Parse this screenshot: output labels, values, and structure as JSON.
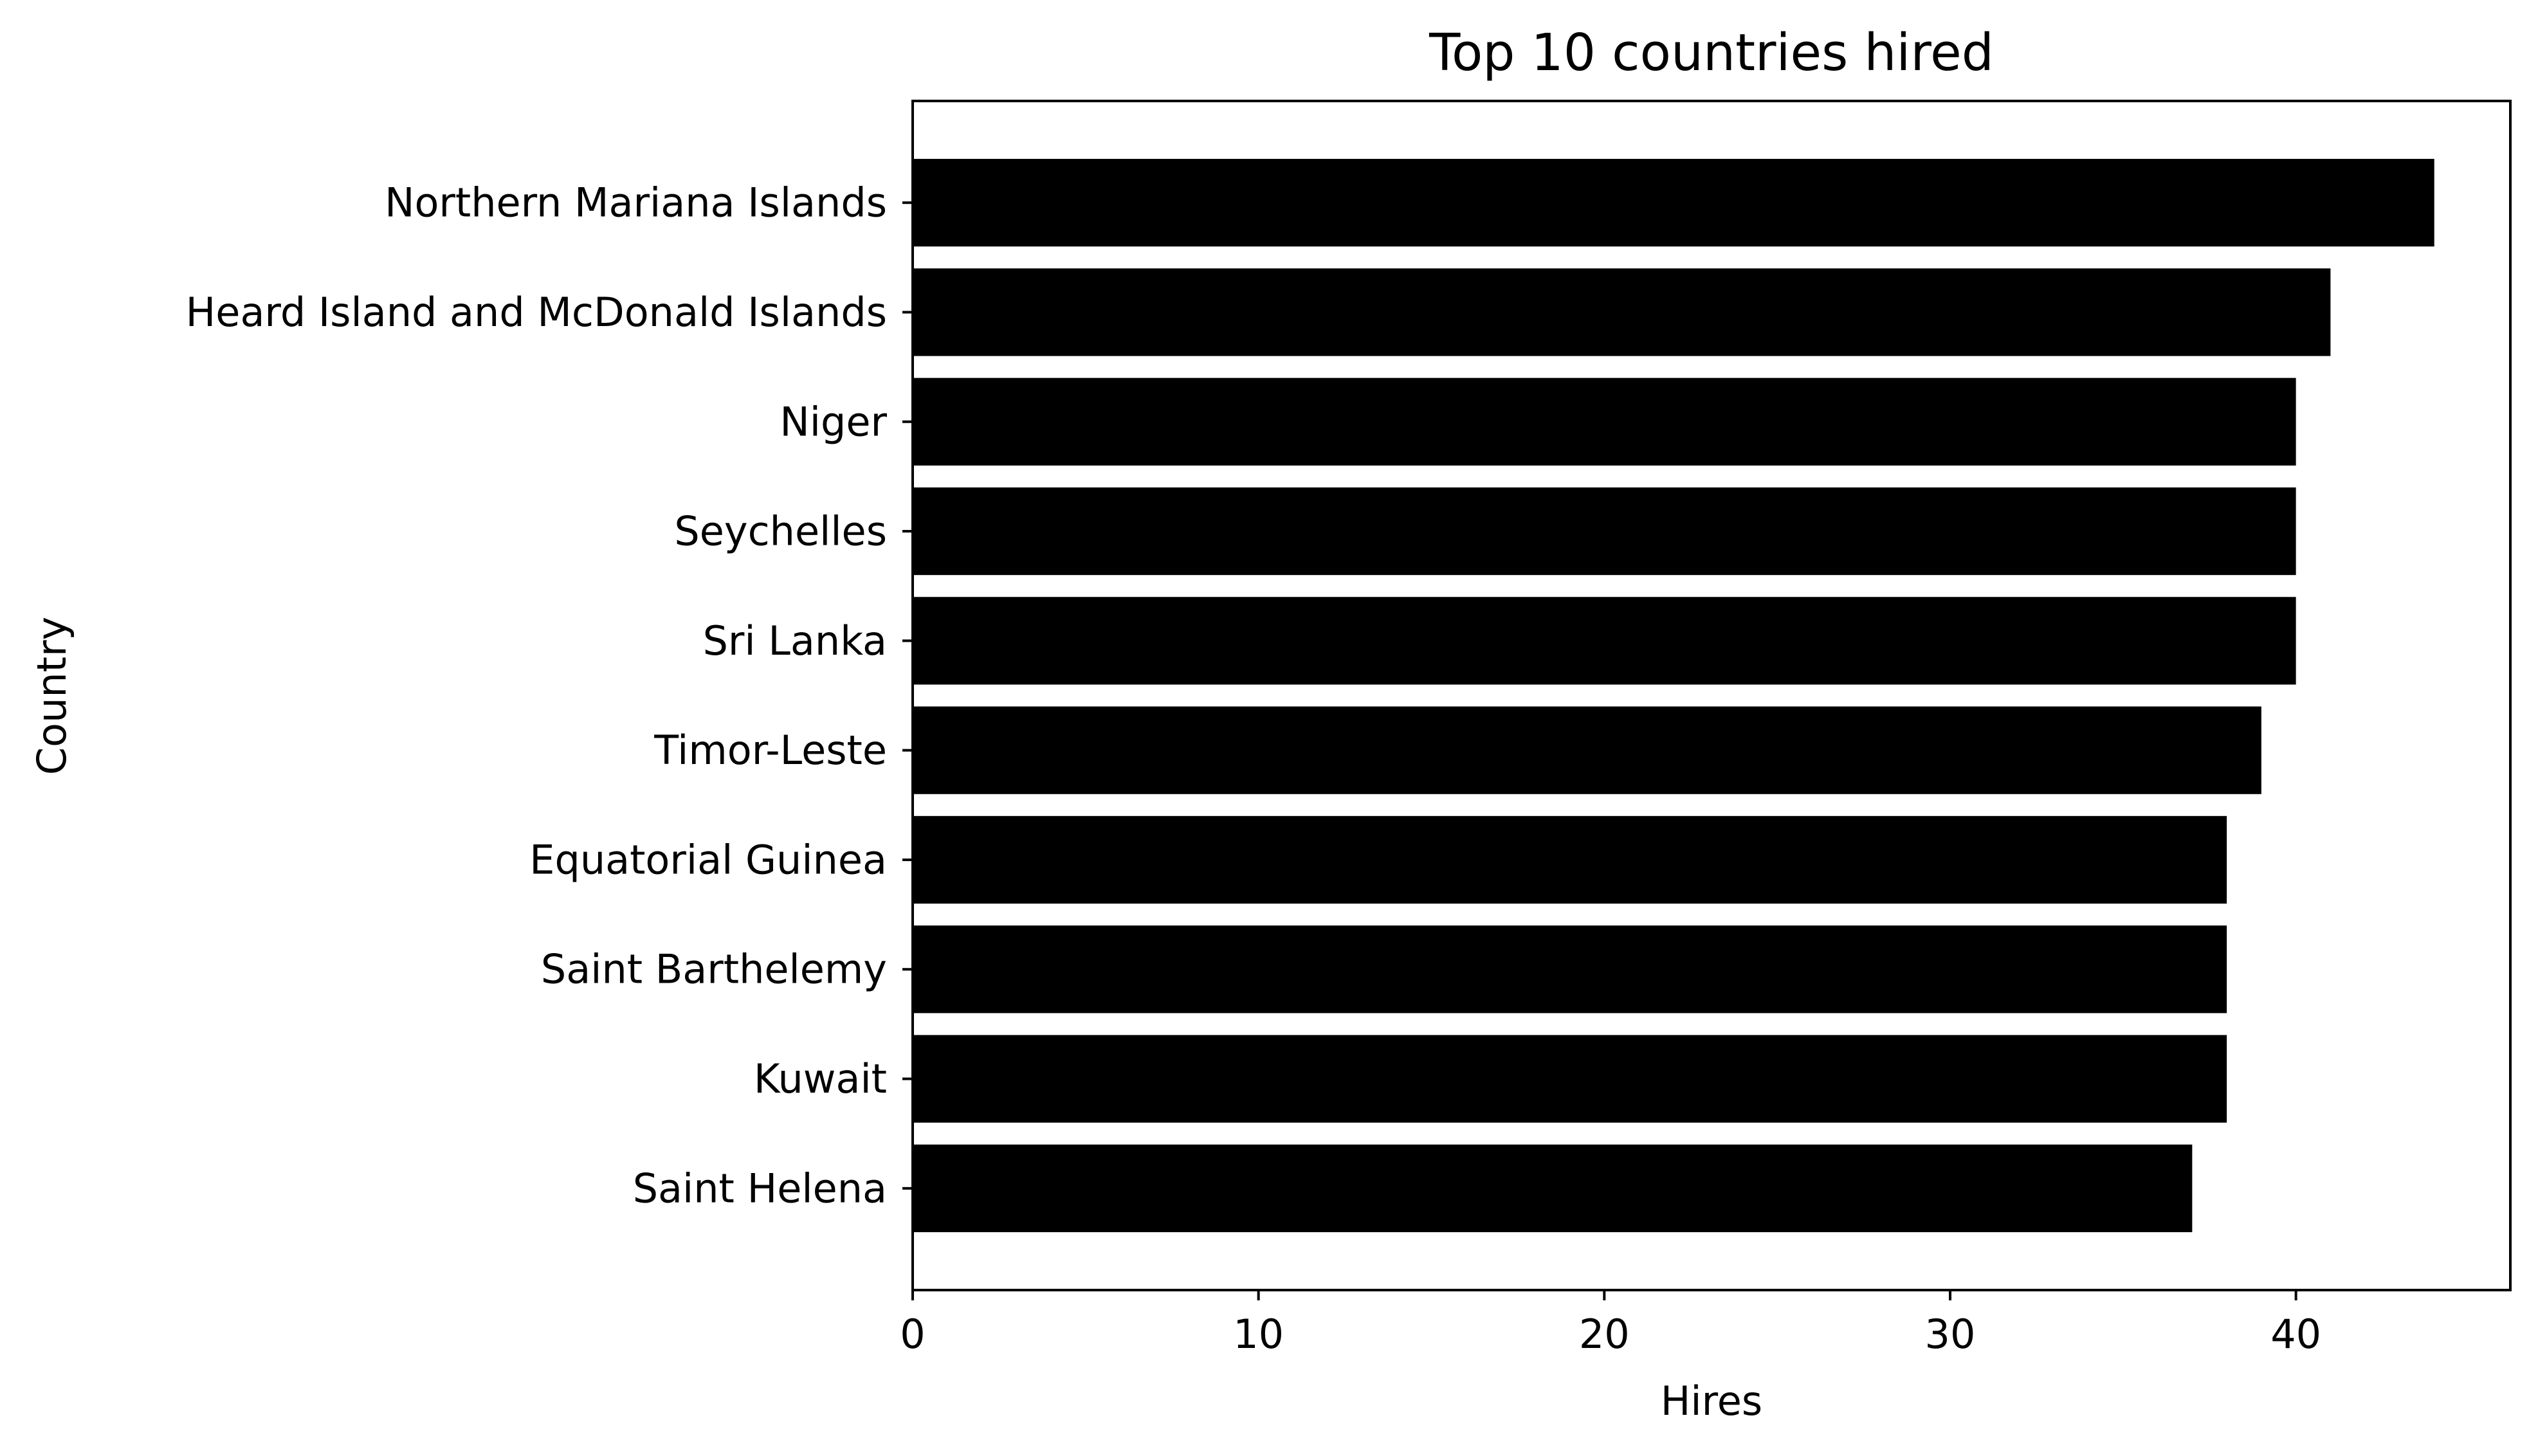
{
  "chart_data": {
    "type": "bar",
    "orientation": "horizontal",
    "title": "Top 10 countries hired",
    "xlabel": "Hires",
    "ylabel": "Country",
    "categories": [
      "Northern Mariana Islands",
      "Heard Island and McDonald Islands",
      "Niger",
      "Seychelles",
      "Sri Lanka",
      "Timor-Leste",
      "Equatorial Guinea",
      "Saint Barthelemy",
      "Kuwait",
      "Saint Helena"
    ],
    "values": [
      44,
      41,
      40,
      40,
      40,
      39,
      38,
      38,
      38,
      37
    ],
    "xlim": [
      0,
      46.2
    ],
    "xticks": [
      0,
      10,
      20,
      30,
      40
    ],
    "bar_color": "#000000",
    "grid": false,
    "legend": "none"
  }
}
